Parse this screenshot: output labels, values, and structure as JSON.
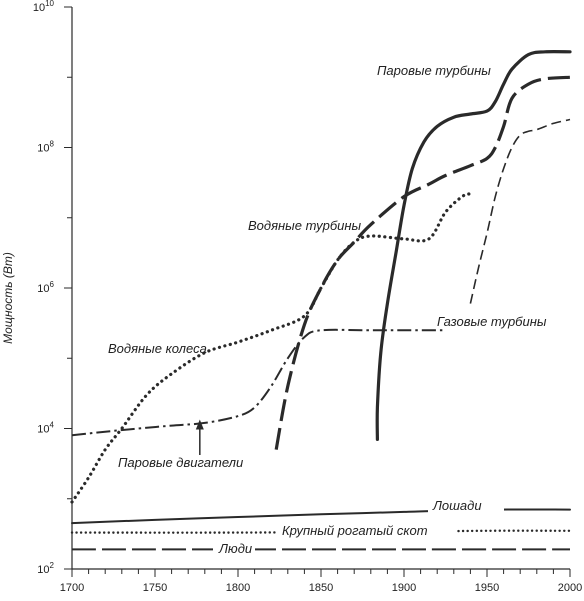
{
  "chart_data": {
    "type": "line",
    "title": "",
    "xlabel": "",
    "ylabel": "Мощность (Вт)",
    "x_scale": "linear",
    "y_scale": "log",
    "xlim": [
      1700,
      2000
    ],
    "ylim": [
      100,
      10000000000
    ],
    "x_ticks": [
      1700,
      1750,
      1800,
      1850,
      1900,
      1950,
      2000
    ],
    "y_ticks": [
      {
        "value": 100,
        "base": "10",
        "exp": "2"
      },
      {
        "value": 10000,
        "base": "10",
        "exp": "4"
      },
      {
        "value": 1000000,
        "base": "10",
        "exp": "6"
      },
      {
        "value": 100000000,
        "base": "10",
        "exp": "8"
      },
      {
        "value": 10000000000,
        "base": "10",
        "exp": "10"
      }
    ],
    "grid": false,
    "series": [
      {
        "name": "Паровые турбины",
        "style": "solid",
        "points": [
          [
            1884,
            7000
          ],
          [
            1884,
            20000
          ],
          [
            1886,
            120000
          ],
          [
            1890,
            600000
          ],
          [
            1895,
            3000000
          ],
          [
            1900,
            15000000
          ],
          [
            1905,
            50000000
          ],
          [
            1912,
            120000000
          ],
          [
            1920,
            200000000
          ],
          [
            1930,
            270000000
          ],
          [
            1940,
            300000000
          ],
          [
            1950,
            330000000
          ],
          [
            1955,
            450000000
          ],
          [
            1960,
            800000000
          ],
          [
            1965,
            1300000000
          ],
          [
            1975,
            2100000000
          ],
          [
            1985,
            2300000000
          ],
          [
            2000,
            2300000000
          ]
        ]
      },
      {
        "name": "Водяные турбины",
        "style": "long-dash",
        "points": [
          [
            1823,
            5000
          ],
          [
            1830,
            40000
          ],
          [
            1840,
            300000
          ],
          [
            1850,
            1000000
          ],
          [
            1860,
            2500000
          ],
          [
            1870,
            4500000
          ],
          [
            1880,
            8000000
          ],
          [
            1900,
            20000000
          ],
          [
            1915,
            30000000
          ],
          [
            1925,
            40000000
          ],
          [
            1940,
            55000000
          ],
          [
            1950,
            70000000
          ],
          [
            1955,
            100000000
          ],
          [
            1960,
            200000000
          ],
          [
            1965,
            500000000
          ],
          [
            1975,
            800000000
          ],
          [
            1985,
            950000000
          ],
          [
            2000,
            1000000000
          ]
        ]
      },
      {
        "name": "Газовые турбины",
        "style": "short-dash",
        "points": [
          [
            1940,
            600000
          ],
          [
            1945,
            2000000
          ],
          [
            1950,
            6000000
          ],
          [
            1955,
            20000000
          ],
          [
            1960,
            50000000
          ],
          [
            1965,
            100000000
          ],
          [
            1970,
            150000000
          ],
          [
            1975,
            170000000
          ],
          [
            1980,
            180000000
          ],
          [
            1990,
            220000000
          ],
          [
            2000,
            250000000
          ]
        ]
      },
      {
        "name": "Водяные колеса",
        "style": "dotted",
        "points": [
          [
            1700,
            900
          ],
          [
            1710,
            2000
          ],
          [
            1720,
            5000
          ],
          [
            1730,
            10000
          ],
          [
            1745,
            30000
          ],
          [
            1760,
            60000
          ],
          [
            1780,
            120000
          ],
          [
            1800,
            170000
          ],
          [
            1820,
            250000
          ],
          [
            1840,
            400000
          ],
          [
            1850,
            1000000
          ],
          [
            1860,
            2500000
          ],
          [
            1870,
            4500000
          ],
          [
            1880,
            5500000
          ],
          [
            1900,
            5000000
          ],
          [
            1915,
            5000000
          ],
          [
            1925,
            12000000
          ],
          [
            1935,
            20000000
          ],
          [
            1940,
            22000000
          ]
        ]
      },
      {
        "name": "Паровые двигатели",
        "style": "dash-dot",
        "points": [
          [
            1700,
            8000
          ],
          [
            1720,
            9000
          ],
          [
            1740,
            10000
          ],
          [
            1760,
            11000
          ],
          [
            1780,
            12000
          ],
          [
            1800,
            15000
          ],
          [
            1810,
            20000
          ],
          [
            1820,
            40000
          ],
          [
            1830,
            100000
          ],
          [
            1840,
            200000
          ],
          [
            1850,
            250000
          ],
          [
            1880,
            250000
          ],
          [
            1900,
            250000
          ],
          [
            1925,
            250000
          ]
        ]
      },
      {
        "name": "Лошади",
        "style": "solid-thin",
        "points": [
          [
            1700,
            450
          ],
          [
            1750,
            500
          ],
          [
            1800,
            550
          ],
          [
            1850,
            600
          ],
          [
            1900,
            650
          ],
          [
            1950,
            700
          ],
          [
            2000,
            700
          ]
        ]
      },
      {
        "name": "Крупный рогатый скот",
        "style": "dotted-thin",
        "points": [
          [
            1700,
            330
          ],
          [
            1800,
            330
          ],
          [
            1900,
            340
          ],
          [
            1950,
            350
          ],
          [
            2000,
            350
          ]
        ]
      },
      {
        "name": "Люди",
        "style": "long-dash-thin",
        "points": [
          [
            1700,
            190
          ],
          [
            1800,
            190
          ],
          [
            1900,
            190
          ],
          [
            2000,
            190
          ]
        ]
      }
    ],
    "annotations": [
      {
        "text": "Паровые турбины",
        "series": 0
      },
      {
        "text": "Водяные турбины",
        "series": 1
      },
      {
        "text": "Газовые турбины",
        "series": 2
      },
      {
        "text": "Водяные колеса",
        "series": 3
      },
      {
        "text": "Паровые двигатели",
        "series": 4
      },
      {
        "text": "Лошади",
        "series": 5
      },
      {
        "text": "Крупный рогатый скот",
        "series": 6
      },
      {
        "text": "Люди",
        "series": 7
      }
    ],
    "colors": {
      "ink": "#2a2a2a",
      "background": "#ffffff"
    }
  }
}
